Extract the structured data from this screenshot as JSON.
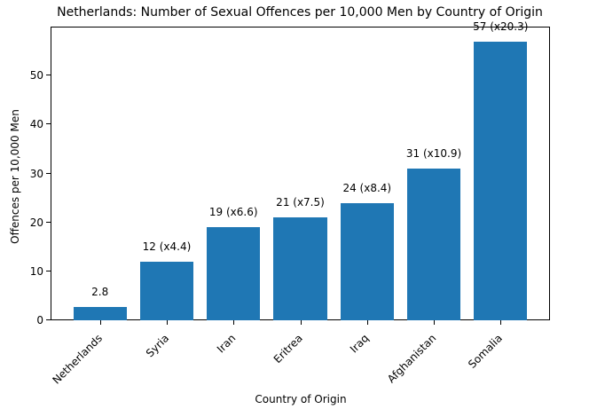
{
  "figure": {
    "background_color": "#ffffff",
    "axis_color": "#000000",
    "text_color": "#000000"
  },
  "chart_data": {
    "type": "bar",
    "title": "Netherlands: Number of Sexual Offences per 10,000 Men by Country of Origin",
    "xlabel": "Country of Origin",
    "ylabel": "Offences per 10,000 Men",
    "categories": [
      "Netherlands",
      "Syria",
      "Iran",
      "Eritrea",
      "Iraq",
      "Afghanistan",
      "Somalia"
    ],
    "values": [
      2.8,
      12,
      19,
      21,
      24,
      31,
      57
    ],
    "bar_labels": [
      "2.8",
      "12 (x4.4)",
      "19 (x6.6)",
      "21 (x7.5)",
      "24 (x8.4)",
      "31 (x10.9)",
      "57 (x20.3)"
    ],
    "bar_color": "#1f77b4",
    "yticks": [
      0,
      10,
      20,
      30,
      40,
      50
    ],
    "ylim": [
      0,
      60
    ],
    "xtick_rotation_deg": 45,
    "grid": false,
    "legend": null
  }
}
